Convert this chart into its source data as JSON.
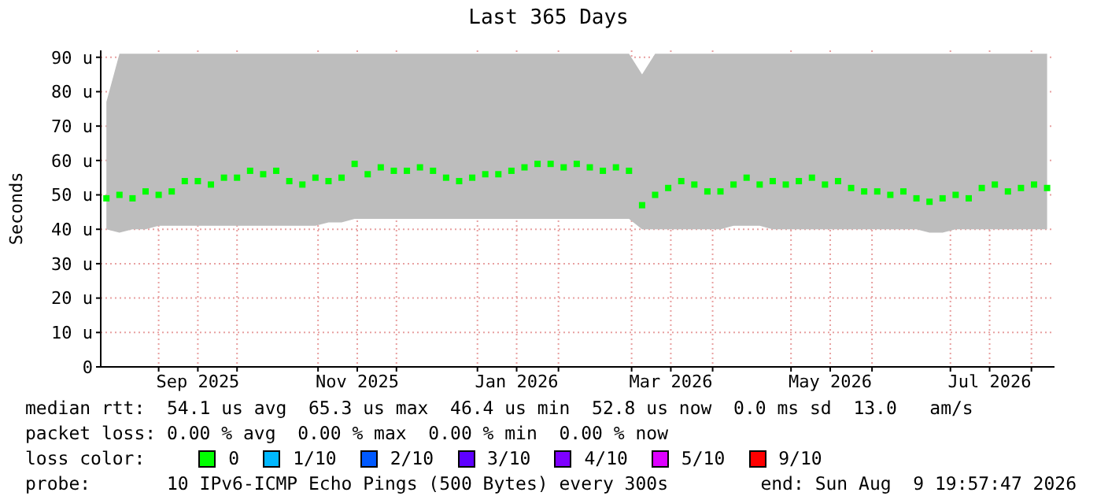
{
  "chart_data": {
    "type": "scatter",
    "title": "Last 365 Days",
    "ylabel": "Seconds",
    "x": [
      "2025-08-12",
      "2025-08-17",
      "2025-08-22",
      "2025-08-27",
      "2025-09-01",
      "2025-09-06",
      "2025-09-11",
      "2025-09-16",
      "2025-09-21",
      "2025-09-26",
      "2025-10-01",
      "2025-10-06",
      "2025-10-11",
      "2025-10-16",
      "2025-10-21",
      "2025-10-26",
      "2025-10-31",
      "2025-11-05",
      "2025-11-10",
      "2025-11-15",
      "2025-11-20",
      "2025-11-25",
      "2025-11-30",
      "2025-12-05",
      "2025-12-10",
      "2025-12-15",
      "2025-12-20",
      "2025-12-25",
      "2025-12-30",
      "2026-01-04",
      "2026-01-09",
      "2026-01-14",
      "2026-01-19",
      "2026-01-24",
      "2026-01-29",
      "2026-02-03",
      "2026-02-08",
      "2026-02-13",
      "2026-02-18",
      "2026-02-23",
      "2026-02-28",
      "2026-03-05",
      "2026-03-10",
      "2026-03-15",
      "2026-03-20",
      "2026-03-25",
      "2026-03-30",
      "2026-04-04",
      "2026-04-09",
      "2026-04-14",
      "2026-04-19",
      "2026-04-24",
      "2026-04-29",
      "2026-05-04",
      "2026-05-09",
      "2026-05-14",
      "2026-05-19",
      "2026-05-24",
      "2026-05-29",
      "2026-06-03",
      "2026-06-08",
      "2026-06-13",
      "2026-06-18",
      "2026-06-23",
      "2026-06-28",
      "2026-07-03",
      "2026-07-08",
      "2026-07-13",
      "2026-07-18",
      "2026-07-23",
      "2026-07-28",
      "2026-08-02",
      "2026-08-07"
    ],
    "series": [
      {
        "name": "0",
        "color": "#00ff00",
        "values": [
          49,
          50,
          49,
          51,
          50,
          51,
          54,
          54,
          53,
          55,
          55,
          57,
          56,
          57,
          54,
          53,
          55,
          54,
          55,
          59,
          56,
          58,
          57,
          57,
          58,
          57,
          55,
          54,
          55,
          56,
          56,
          57,
          58,
          59,
          59,
          58,
          59,
          58,
          57,
          58,
          57,
          47,
          50,
          52,
          54,
          53,
          51,
          51,
          53,
          55,
          53,
          54,
          53,
          54,
          55,
          53,
          54,
          52,
          51,
          51,
          50,
          51,
          49,
          48,
          49,
          50,
          49,
          52,
          53,
          51,
          52,
          53,
          52
        ],
        "lower": [
          40,
          39,
          40,
          40,
          41,
          41,
          41,
          41,
          41,
          41,
          41,
          41,
          41,
          41,
          41,
          41,
          41,
          42,
          42,
          43,
          43,
          43,
          43,
          43,
          43,
          43,
          43,
          43,
          43,
          43,
          43,
          43,
          43,
          43,
          43,
          43,
          43,
          43,
          43,
          43,
          43,
          40,
          40,
          40,
          40,
          40,
          40,
          40,
          41,
          41,
          41,
          40,
          40,
          40,
          40,
          40,
          40,
          40,
          40,
          40,
          40,
          40,
          40,
          39,
          39,
          40,
          40,
          40,
          40,
          40,
          40,
          40,
          40
        ],
        "upper": [
          77,
          91,
          91,
          91,
          91,
          91,
          91,
          91,
          91,
          91,
          91,
          91,
          91,
          91,
          91,
          91,
          91,
          91,
          91,
          91,
          91,
          91,
          91,
          91,
          91,
          91,
          91,
          91,
          91,
          91,
          91,
          91,
          91,
          91,
          91,
          91,
          91,
          91,
          91,
          91,
          91,
          85,
          91,
          91,
          91,
          91,
          91,
          91,
          91,
          91,
          91,
          91,
          91,
          91,
          91,
          91,
          91,
          91,
          91,
          91,
          91,
          91,
          91,
          91,
          91,
          91,
          91,
          91,
          91,
          91,
          91,
          91,
          91
        ]
      },
      {
        "name": "1/10",
        "color": "#00b8ff",
        "values": [
          null,
          null,
          null,
          null,
          null,
          null,
          null,
          null,
          null,
          null,
          null,
          null,
          null,
          null,
          null,
          null,
          null,
          null,
          null,
          null,
          null,
          null,
          null,
          null,
          null,
          null,
          null,
          null,
          null,
          null,
          null,
          null,
          null,
          null,
          null,
          null,
          null,
          null,
          null,
          null,
          null,
          null,
          null,
          null,
          null,
          null,
          null,
          null,
          null,
          null,
          null,
          null,
          null,
          null,
          null,
          null,
          null,
          null,
          null,
          null,
          null,
          null,
          null,
          null,
          null,
          null,
          null,
          null,
          null,
          null,
          null,
          null,
          null
        ]
      },
      {
        "name": "2/10",
        "color": "#0059ff",
        "values": [
          null,
          null,
          null,
          null,
          null,
          null,
          null,
          null,
          null,
          null,
          null,
          null,
          null,
          null,
          null,
          null,
          null,
          null,
          null,
          null,
          null,
          null,
          null,
          null,
          null,
          null,
          null,
          null,
          null,
          null,
          null,
          null,
          null,
          null,
          null,
          null,
          null,
          null,
          null,
          null,
          null,
          null,
          null,
          null,
          null,
          null,
          null,
          null,
          null,
          null,
          null,
          null,
          null,
          null,
          null,
          null,
          null,
          null,
          null,
          null,
          null,
          null,
          null,
          null,
          null,
          null,
          null,
          null,
          null,
          null,
          null,
          null,
          null
        ]
      },
      {
        "name": "3/10",
        "color": "#5e00ff",
        "values": [
          null,
          null,
          null,
          null,
          null,
          null,
          null,
          null,
          null,
          null,
          null,
          null,
          null,
          null,
          null,
          null,
          null,
          null,
          null,
          null,
          null,
          null,
          null,
          null,
          null,
          null,
          null,
          null,
          null,
          null,
          null,
          null,
          null,
          null,
          null,
          null,
          null,
          null,
          null,
          null,
          null,
          null,
          null,
          null,
          null,
          null,
          null,
          null,
          null,
          null,
          null,
          null,
          null,
          null,
          null,
          null,
          null,
          null,
          null,
          null,
          null,
          null,
          null,
          null,
          null,
          null,
          null,
          null,
          null,
          null,
          null,
          null,
          null
        ]
      },
      {
        "name": "4/10",
        "color": "#7e00ff",
        "values": [
          null,
          null,
          null,
          null,
          null,
          null,
          null,
          null,
          null,
          null,
          null,
          null,
          null,
          null,
          null,
          null,
          null,
          null,
          null,
          null,
          null,
          null,
          null,
          null,
          null,
          null,
          null,
          null,
          null,
          null,
          null,
          null,
          null,
          null,
          null,
          null,
          null,
          null,
          null,
          null,
          null,
          null,
          null,
          null,
          null,
          null,
          null,
          null,
          null,
          null,
          null,
          null,
          null,
          null,
          null,
          null,
          null,
          null,
          null,
          null,
          null,
          null,
          null,
          null,
          null,
          null,
          null,
          null,
          null,
          null,
          null,
          null,
          null
        ]
      },
      {
        "name": "5/10",
        "color": "#dd00ff",
        "values": [
          null,
          null,
          null,
          null,
          null,
          null,
          null,
          null,
          null,
          null,
          null,
          null,
          null,
          null,
          null,
          null,
          null,
          null,
          null,
          null,
          null,
          null,
          null,
          null,
          null,
          null,
          null,
          null,
          null,
          null,
          null,
          null,
          null,
          null,
          null,
          null,
          null,
          null,
          null,
          null,
          null,
          null,
          null,
          null,
          null,
          null,
          null,
          null,
          null,
          null,
          null,
          null,
          null,
          null,
          null,
          null,
          null,
          null,
          null,
          null,
          null,
          null,
          null,
          null,
          null,
          null,
          null,
          null,
          null,
          null,
          null,
          null,
          null
        ]
      },
      {
        "name": "9/10",
        "color": "#ff0000",
        "values": [
          null,
          null,
          null,
          null,
          null,
          null,
          null,
          null,
          null,
          null,
          null,
          null,
          null,
          null,
          null,
          null,
          null,
          null,
          null,
          null,
          null,
          null,
          null,
          null,
          null,
          null,
          null,
          null,
          null,
          null,
          null,
          null,
          null,
          null,
          null,
          null,
          null,
          null,
          null,
          null,
          null,
          null,
          null,
          null,
          null,
          null,
          null,
          null,
          null,
          null,
          null,
          null,
          null,
          null,
          null,
          null,
          null,
          null,
          null,
          null,
          null,
          null,
          null,
          null,
          null,
          null,
          null,
          null,
          null,
          null,
          null,
          null,
          null
        ]
      }
    ],
    "marker": "square",
    "legend": "bottom",
    "legend_title": "loss color:",
    "grid": true,
    "xlim": [
      "2025-08-09T20:00",
      "2026-08-09T20:00"
    ],
    "xticks": [
      {
        "value": "2025-09-01",
        "label": null
      },
      {
        "value": "2025-09-16",
        "label": "Sep 2025"
      },
      {
        "value": "2025-10-01",
        "label": null
      },
      {
        "value": "2025-11-01",
        "label": null
      },
      {
        "value": "2025-11-16",
        "label": "Nov 2025"
      },
      {
        "value": "2025-12-01",
        "label": null
      },
      {
        "value": "2026-01-01",
        "label": null
      },
      {
        "value": "2026-01-16",
        "label": "Jan 2026"
      },
      {
        "value": "2026-02-01",
        "label": null
      },
      {
        "value": "2026-03-01",
        "label": null
      },
      {
        "value": "2026-03-16",
        "label": "Mar 2026"
      },
      {
        "value": "2026-04-01",
        "label": null
      },
      {
        "value": "2026-05-01",
        "label": null
      },
      {
        "value": "2026-05-16",
        "label": "May 2026"
      },
      {
        "value": "2026-06-01",
        "label": null
      },
      {
        "value": "2026-07-01",
        "label": null
      },
      {
        "value": "2026-07-16",
        "label": "Jul 2026"
      },
      {
        "value": "2026-08-01",
        "label": null
      }
    ],
    "ylim": [
      0,
      92
    ],
    "yticks": [
      0,
      {
        "value": 10,
        "label": "10 u"
      },
      {
        "value": 20,
        "label": "20 u"
      },
      {
        "value": 30,
        "label": "30 u"
      },
      {
        "value": 40,
        "label": "40 u"
      },
      {
        "value": 50,
        "label": "50 u"
      },
      {
        "value": 60,
        "label": "60 u"
      },
      {
        "value": 70,
        "label": "70 u"
      },
      {
        "value": 80,
        "label": "80 u"
      },
      {
        "value": 90,
        "label": "90 u"
      }
    ],
    "annotations": [
      "median rtt:  54.1 us avg  65.3 us max  46.4 us min  52.8 us now  0.0 ms sd  13.0   am/s",
      "packet loss: 0.00 % avg  0.00 % max  0.00 % min  0.00 % now",
      "probe:       10 IPv6-ICMP Echo Pings (500 Bytes) every 300s",
      "end: Sun Aug  9 19:57:47 2026"
    ]
  }
}
